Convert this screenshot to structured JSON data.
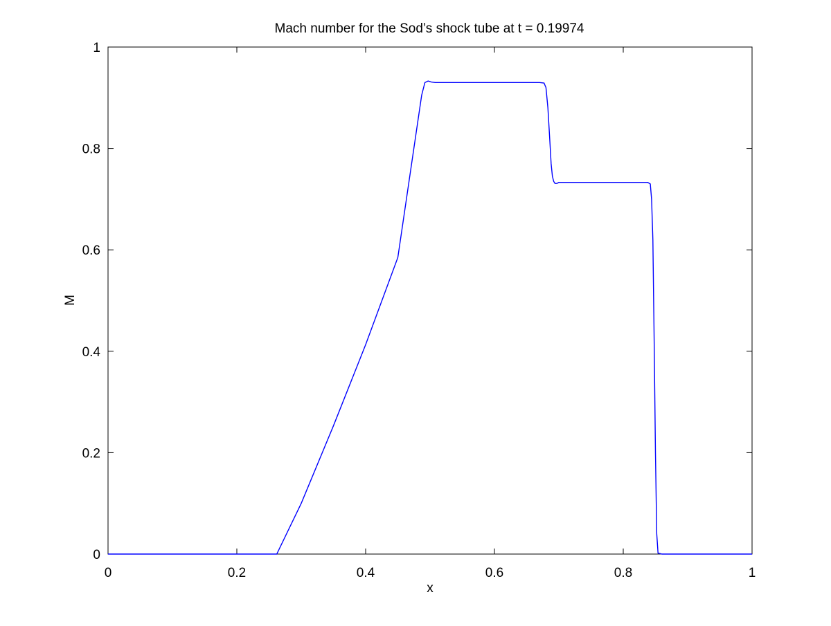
{
  "chart_data": {
    "type": "line",
    "title": "Mach number for the Sod’s shock tube at t = 0.19974",
    "xlabel": "x",
    "ylabel": "M",
    "xlim": [
      0,
      1
    ],
    "ylim": [
      0,
      1
    ],
    "xticks": [
      0,
      0.2,
      0.4,
      0.6,
      0.8,
      1
    ],
    "yticks": [
      0,
      0.2,
      0.4,
      0.6,
      0.8,
      1
    ],
    "xtick_labels": [
      "0",
      "0.2",
      "0.4",
      "0.6",
      "0.8",
      "1"
    ],
    "ytick_labels": [
      "0",
      "0.2",
      "0.4",
      "0.6",
      "0.8",
      "1"
    ],
    "grid": false,
    "line_color": "#0000ff",
    "series": [
      {
        "x": [
          0,
          0.262,
          0.3,
          0.35,
          0.4,
          0.45,
          0.487,
          0.492,
          0.497,
          0.502,
          0.508,
          0.52,
          0.6,
          0.67,
          0.677,
          0.68,
          0.683,
          0.686,
          0.688,
          0.69,
          0.692,
          0.694,
          0.697,
          0.7,
          0.705,
          0.71,
          0.75,
          0.8,
          0.838,
          0.842,
          0.844,
          0.846,
          0.848,
          0.85,
          0.852,
          0.854,
          0.86,
          0.9,
          1.0
        ],
        "y": [
          0,
          0,
          0.1,
          0.253,
          0.413,
          0.585,
          0.905,
          0.93,
          0.933,
          0.931,
          0.93,
          0.93,
          0.93,
          0.93,
          0.929,
          0.92,
          0.88,
          0.815,
          0.77,
          0.745,
          0.735,
          0.731,
          0.731,
          0.733,
          0.733,
          0.733,
          0.733,
          0.733,
          0.733,
          0.73,
          0.7,
          0.62,
          0.42,
          0.2,
          0.04,
          0.002,
          0.0,
          0.0,
          0.0
        ]
      }
    ]
  }
}
